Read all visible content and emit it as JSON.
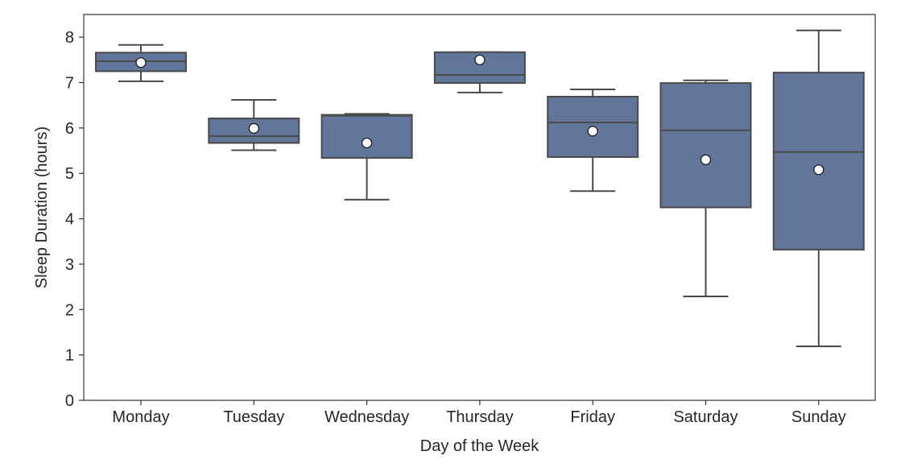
{
  "chart_data": {
    "type": "box",
    "title": "",
    "xlabel": "Day of the Week",
    "ylabel": "Sleep Duration (hours)",
    "ylim": [
      0,
      8.5
    ],
    "yticks": [
      0,
      1,
      2,
      3,
      4,
      5,
      6,
      7,
      8
    ],
    "grid": false,
    "legend": "none",
    "colors": {
      "box_fill": "#62769b",
      "line": "#4a4a4a",
      "mean_marker": "#ffffff",
      "axes": "#333333"
    },
    "categories": [
      "Monday",
      "Tuesday",
      "Wednesday",
      "Thursday",
      "Friday",
      "Saturday",
      "Sunday"
    ],
    "boxes": [
      {
        "category": "Monday",
        "whislo": 7.03,
        "q1": 7.25,
        "med": 7.47,
        "q3": 7.66,
        "whishi": 7.83,
        "mean": 7.44
      },
      {
        "category": "Tuesday",
        "whislo": 5.51,
        "q1": 5.67,
        "med": 5.82,
        "q3": 6.21,
        "whishi": 6.62,
        "mean": 5.99
      },
      {
        "category": "Wednesday",
        "whislo": 4.42,
        "q1": 5.34,
        "med": 6.27,
        "q3": 6.29,
        "whishi": 6.31,
        "mean": 5.67
      },
      {
        "category": "Thursday",
        "whislo": 6.78,
        "q1": 6.99,
        "med": 7.17,
        "q3": 7.67,
        "whishi": 7.67,
        "mean": 7.5
      },
      {
        "category": "Friday",
        "whislo": 4.61,
        "q1": 5.36,
        "med": 6.12,
        "q3": 6.69,
        "whishi": 6.85,
        "mean": 5.93
      },
      {
        "category": "Saturday",
        "whislo": 2.29,
        "q1": 4.25,
        "med": 5.95,
        "q3": 6.99,
        "whishi": 7.05,
        "mean": 5.3
      },
      {
        "category": "Sunday",
        "whislo": 1.19,
        "q1": 3.32,
        "med": 5.47,
        "q3": 7.22,
        "whishi": 8.15,
        "mean": 5.08
      }
    ]
  }
}
